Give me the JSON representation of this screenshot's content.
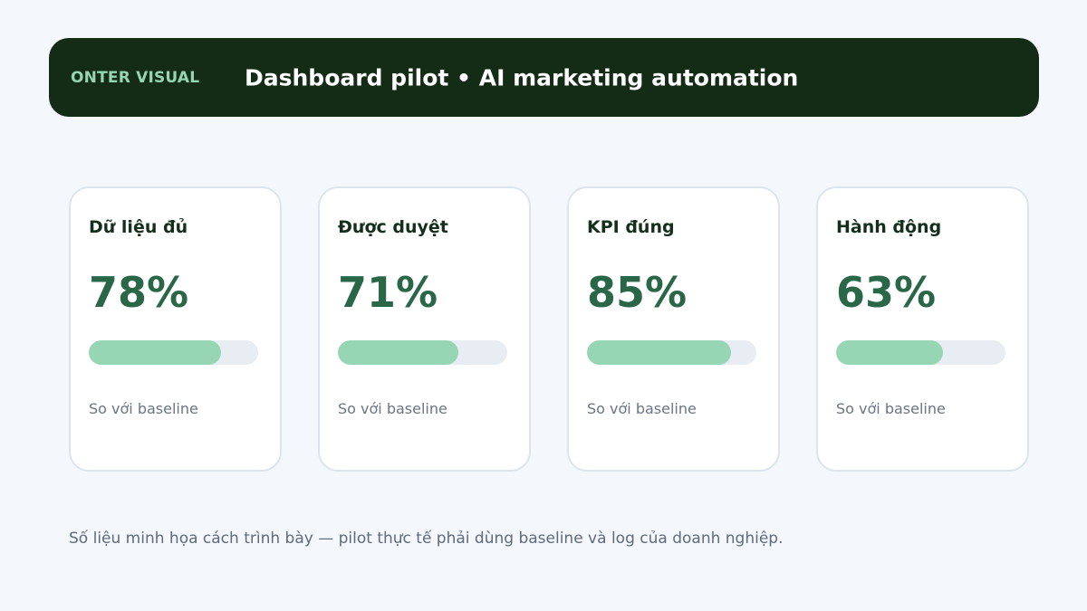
{
  "header": {
    "brand": "ONTER VISUAL",
    "title": "Dashboard pilot • AI marketing automation"
  },
  "cards": [
    {
      "label": "Dữ liệu đủ",
      "value_text": "78%",
      "progress": 0.78,
      "note": "So với baseline"
    },
    {
      "label": "Được duyệt",
      "value_text": "71%",
      "progress": 0.71,
      "note": "So với baseline"
    },
    {
      "label": "KPI đúng",
      "value_text": "85%",
      "progress": 0.85,
      "note": "So với baseline"
    },
    {
      "label": "Hành động",
      "value_text": "63%",
      "progress": 0.63,
      "note": "So với baseline"
    }
  ],
  "footnote": "Số liệu minh họa cách trình bày — pilot thực tế phải dùng baseline và log của doanh nghiệp.",
  "colors": {
    "header_bg": "#142b15",
    "brand": "#94d6b1",
    "value": "#2a6749",
    "bar_fill": "#97d6b4",
    "bar_track": "#e8edf3"
  }
}
